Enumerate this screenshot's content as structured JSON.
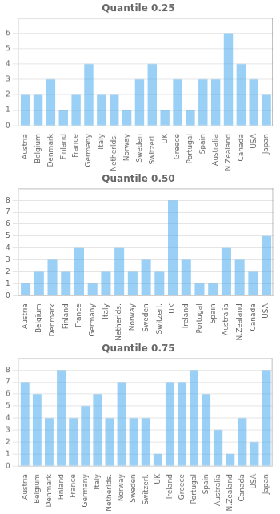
{
  "chart_data": [
    {
      "type": "bar",
      "title": "Quantile 0.25",
      "categories": [
        "Austria",
        "Belgium",
        "Denmark",
        "Finland",
        "France",
        "Germany",
        "Italy",
        "Netherlds.",
        "Norway",
        "Sweden",
        "Switzerl.",
        "UK",
        "Greece",
        "Portugal",
        "Spain",
        "Australia",
        "N.Zealand",
        "Canada",
        "USA",
        "Japan"
      ],
      "values": [
        2,
        2,
        3,
        1,
        2,
        4,
        2,
        2,
        1,
        3,
        4,
        1,
        3,
        1,
        3,
        3,
        6,
        4,
        3,
        2
      ],
      "ylim": [
        0,
        7
      ],
      "yticks": [
        0,
        1,
        2,
        3,
        4,
        5,
        6
      ],
      "grid": true
    },
    {
      "type": "bar",
      "title": "Quantile 0.50",
      "categories": [
        "Austria",
        "Belgium",
        "Denmark",
        "Finland",
        "France",
        "Germany",
        "Italy",
        "Netherlds.",
        "Norway",
        "Sweden",
        "Switzerl.",
        "UK",
        "Ireland",
        "Portugal",
        "Spain",
        "Australia",
        "N.Zealand",
        "Canada",
        "USA"
      ],
      "values": [
        1,
        2,
        3,
        2,
        4,
        1,
        2,
        4,
        2,
        3,
        2,
        8,
        3,
        1,
        1,
        4,
        3,
        2,
        5
      ],
      "ylim": [
        0,
        9
      ],
      "yticks": [
        0,
        1,
        2,
        3,
        4,
        5,
        6,
        7,
        8
      ],
      "grid": true
    },
    {
      "type": "bar",
      "title": "Quantile 0.75",
      "categories": [
        "Austria",
        "Belgium",
        "Denmark",
        "Finland",
        "France",
        "Germany",
        "Italy",
        "Netherlds.",
        "Norway",
        "Sweden",
        "Switzerl.",
        "UK",
        "Ireland",
        "Greece",
        "Portugal",
        "Spain",
        "Australia",
        "N.Zealand",
        "Canada",
        "USA",
        "Japan"
      ],
      "values": [
        7,
        6,
        4,
        8,
        4,
        5,
        6,
        4,
        7,
        4,
        4,
        1,
        7,
        7,
        8,
        6,
        3,
        1,
        4,
        2,
        8
      ],
      "ylim": [
        0,
        9
      ],
      "yticks": [
        0,
        1,
        2,
        3,
        4,
        5,
        6,
        7,
        8
      ],
      "grid": true
    }
  ]
}
